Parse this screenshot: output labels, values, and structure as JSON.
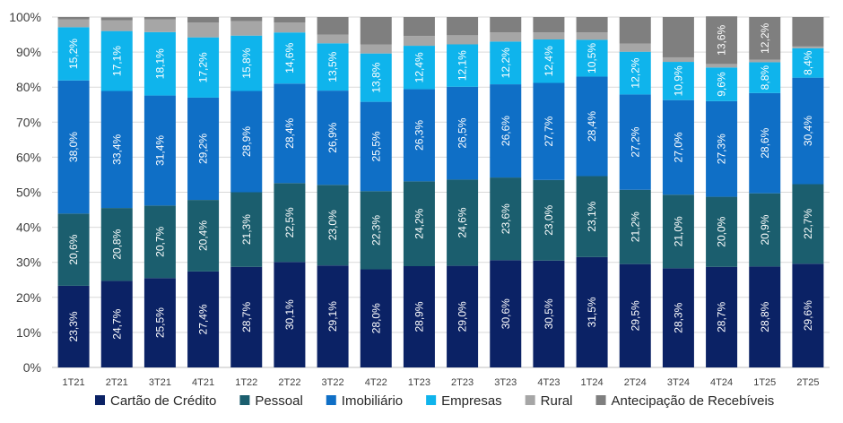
{
  "chart_data": {
    "type": "bar",
    "stacked": true,
    "categories": [
      "1T21",
      "2T21",
      "3T21",
      "4T21",
      "1T22",
      "2T22",
      "3T22",
      "4T22",
      "1T23",
      "2T23",
      "3T23",
      "4T23",
      "1T24",
      "2T24",
      "3T24",
      "4T24",
      "1T25",
      "2T25"
    ],
    "ylim": [
      0,
      100
    ],
    "yticks": [
      "0%",
      "10%",
      "20%",
      "30%",
      "40%",
      "50%",
      "60%",
      "70%",
      "80%",
      "90%",
      "100%"
    ],
    "grid": true,
    "legend_position": "bottom",
    "series": [
      {
        "name": "Cartão de Crédito",
        "color": "#0b2265",
        "values": [
          23.3,
          24.7,
          25.5,
          27.4,
          28.7,
          30.1,
          29.1,
          28.0,
          28.9,
          29.0,
          30.6,
          30.5,
          31.5,
          29.5,
          28.3,
          28.7,
          28.8,
          29.6
        ],
        "labels": [
          "23,3%",
          "24,7%",
          "25,5%",
          "27,4%",
          "28,7%",
          "30,1%",
          "29,1%",
          "28,0%",
          "28,9%",
          "29,0%",
          "30,6%",
          "30,5%",
          "31,5%",
          "29,5%",
          "28,3%",
          "28,7%",
          "28,8%",
          "29,6%"
        ]
      },
      {
        "name": "Pessoal",
        "color": "#1b5e6e",
        "values": [
          20.6,
          20.8,
          20.7,
          20.4,
          21.3,
          22.5,
          23.0,
          22.3,
          24.2,
          24.6,
          23.6,
          23.0,
          23.1,
          21.2,
          21.0,
          20.0,
          20.9,
          22.7
        ],
        "labels": [
          "20,6%",
          "20,8%",
          "20,7%",
          "20,4%",
          "21,3%",
          "22,5%",
          "23,0%",
          "22,3%",
          "24,2%",
          "24,6%",
          "23,6%",
          "23,0%",
          "23,1%",
          "21,2%",
          "21,0%",
          "20,0%",
          "20,9%",
          "22,7%"
        ]
      },
      {
        "name": "Imobiliário",
        "color": "#0f6fc6",
        "values": [
          38.0,
          33.4,
          31.4,
          29.2,
          28.9,
          28.4,
          26.9,
          25.5,
          26.3,
          26.5,
          26.6,
          27.7,
          28.4,
          27.2,
          27.0,
          27.3,
          28.6,
          30.4
        ],
        "labels": [
          "38,0%",
          "33,4%",
          "31,4%",
          "29,2%",
          "28,9%",
          "28,4%",
          "26,9%",
          "25,5%",
          "26,3%",
          "26,5%",
          "26,6%",
          "27,7%",
          "28,4%",
          "27,2%",
          "27,0%",
          "27,3%",
          "28,6%",
          "30,4%"
        ]
      },
      {
        "name": "Empresas",
        "color": "#0fb4ec",
        "values": [
          15.2,
          17.1,
          18.1,
          17.2,
          15.8,
          14.6,
          13.5,
          13.8,
          12.4,
          12.1,
          12.2,
          12.4,
          10.5,
          12.2,
          10.9,
          9.6,
          8.8,
          8.4
        ],
        "labels": [
          "15,2%",
          "17,1%",
          "18,1%",
          "17,2%",
          "15,8%",
          "14,6%",
          "13,5%",
          "13,8%",
          "12,4%",
          "12,1%",
          "12,2%",
          "12,4%",
          "10,5%",
          "12,2%",
          "10,9%",
          "9,6%",
          "8,8%",
          "8,4%"
        ]
      },
      {
        "name": "Rural",
        "color": "#a6a6a6",
        "values": [
          2.2,
          3.1,
          3.6,
          4.2,
          4.1,
          2.8,
          2.5,
          2.6,
          2.8,
          2.6,
          2.6,
          2.0,
          2.1,
          2.3,
          1.3,
          1.0,
          0.7,
          0.5
        ],
        "labels": []
      },
      {
        "name": "Antecipação de Recebíveis",
        "color": "#7f7f7f",
        "values": [
          0.7,
          0.8,
          0.7,
          1.6,
          1.2,
          1.6,
          5.0,
          7.8,
          5.4,
          5.2,
          4.4,
          4.4,
          4.4,
          7.6,
          11.5,
          13.6,
          12.2,
          8.4
        ],
        "labels": [
          "",
          "",
          "",
          "",
          "",
          "",
          "",
          "",
          "",
          "",
          "",
          "",
          "",
          "",
          "",
          "13,6%",
          "12,2%",
          ""
        ]
      }
    ]
  }
}
